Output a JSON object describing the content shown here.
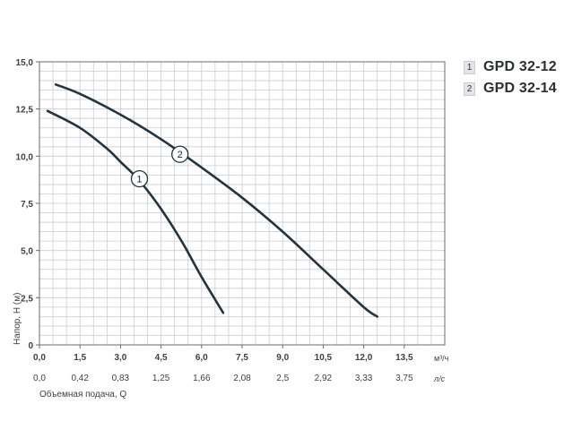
{
  "chart_data": {
    "type": "line",
    "ylabel": "Напор, H (м)",
    "xlabel_secondary": "Объемная подача, Q",
    "x_unit": "м³/ч",
    "x2_unit": "л/с",
    "xlim": [
      0,
      15
    ],
    "ylim": [
      0,
      15
    ],
    "x_ticks": [
      "0,0",
      "1,5",
      "3,0",
      "4,5",
      "6,0",
      "7,5",
      "9,0",
      "10,5",
      "12,0",
      "13,5"
    ],
    "x_tick_values": [
      0,
      1.5,
      3,
      4.5,
      6,
      7.5,
      9,
      10.5,
      12,
      13.5
    ],
    "x2_ticks": [
      "0,0",
      "0,42",
      "0,83",
      "1,25",
      "1,66",
      "2,08",
      "2,5",
      "2,92",
      "3,33",
      "3,75"
    ],
    "y_ticks": [
      "0",
      "2,5",
      "5,0",
      "7,5",
      "10,0",
      "12,5",
      "15,0"
    ],
    "y_tick_values": [
      0,
      2.5,
      5,
      7.5,
      10,
      12.5,
      15
    ],
    "grid": true,
    "legend_position": "top-right",
    "series": [
      {
        "name": "GPD 32-12",
        "marker": "1",
        "x": [
          0.3,
          1.5,
          2.5,
          3.0,
          3.7,
          4.5,
          5.3,
          6.0,
          6.8
        ],
        "y": [
          12.4,
          11.5,
          10.4,
          9.7,
          8.7,
          7.2,
          5.4,
          3.6,
          1.7
        ]
      },
      {
        "name": "GPD 32-14",
        "marker": "2",
        "x": [
          0.6,
          1.5,
          3.0,
          4.5,
          6.0,
          7.5,
          9.0,
          10.5,
          12.0,
          12.5
        ],
        "y": [
          13.8,
          13.3,
          12.2,
          10.9,
          9.4,
          7.8,
          6.0,
          4.0,
          2.0,
          1.5
        ]
      }
    ],
    "curve_label_points": [
      {
        "label": "1",
        "x": 3.7,
        "y": 8.8
      },
      {
        "label": "2",
        "x": 5.2,
        "y": 10.1
      }
    ]
  },
  "legend": [
    {
      "num": "1",
      "name": "GPD 32-12"
    },
    {
      "num": "2",
      "name": "GPD 32-14"
    }
  ],
  "colors": {
    "grid": "#c9ccd1",
    "axis": "#666a70",
    "curve": "#24333d",
    "text": "#3c3f43"
  }
}
